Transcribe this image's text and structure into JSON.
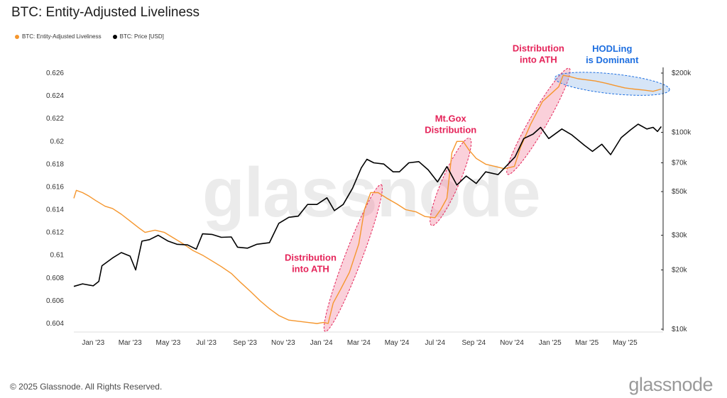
{
  "title": "BTC: Entity-Adjusted Liveliness",
  "legend": {
    "liveliness_label": "BTC: Entity-Adjusted Liveliness",
    "price_label": "BTC: Price [USD]"
  },
  "footer": {
    "copyright": "© 2025 Glassnode. All Rights Reserved.",
    "logo": "glassnode"
  },
  "watermark": "glassnode",
  "colors": {
    "liveliness": "#f5962d",
    "price": "#000000",
    "pink_annotation": "#e5245a",
    "blue_annotation": "#1e6fe0",
    "pink_fill": "rgba(240,120,150,0.35)",
    "blue_fill": "rgba(120,170,230,0.3)"
  },
  "chart_data": {
    "type": "line",
    "title": "BTC: Entity-Adjusted Liveliness",
    "x_ticks": [
      "Jan '23",
      "Mar '23",
      "May '23",
      "Jul '23",
      "Sep '23",
      "Nov '23",
      "Jan '24",
      "Mar '24",
      "May '24",
      "Jul '24",
      "Sep '24",
      "Nov '24",
      "Jan '25",
      "Mar '25",
      "May '25"
    ],
    "x_range": [
      "2022-12-01",
      "2025-07-01"
    ],
    "left_axis": {
      "ticks": [
        "0.626",
        "0.624",
        "0.622",
        "0.62",
        "0.618",
        "0.616",
        "0.614",
        "0.612",
        "0.61",
        "0.608",
        "0.606",
        "0.604"
      ],
      "range": [
        0.6035,
        0.626
      ]
    },
    "right_axis": {
      "scale": "log",
      "ticks": [
        "$200k",
        "$100k",
        "$70k",
        "$50k",
        "$30k",
        "$20k",
        "$10k"
      ],
      "tick_values": [
        200000,
        100000,
        70000,
        50000,
        30000,
        20000,
        10000
      ],
      "range": [
        10000,
        200000
      ]
    },
    "grid": false,
    "legend_position": "top-left",
    "series": [
      {
        "name": "BTC: Entity-Adjusted Liveliness",
        "axis": "left",
        "color": "#f5962d",
        "points": [
          [
            "2022-12-01",
            0.615
          ],
          [
            "2022-12-05",
            0.6157
          ],
          [
            "2022-12-15",
            0.6155
          ],
          [
            "2022-12-25",
            0.6152
          ],
          [
            "2023-01-05",
            0.6148
          ],
          [
            "2023-01-20",
            0.6143
          ],
          [
            "2023-02-01",
            0.6141
          ],
          [
            "2023-02-15",
            0.6136
          ],
          [
            "2023-03-01",
            0.613
          ],
          [
            "2023-03-15",
            0.6124
          ],
          [
            "2023-03-25",
            0.612
          ],
          [
            "2023-04-10",
            0.6122
          ],
          [
            "2023-04-25",
            0.612
          ],
          [
            "2023-05-10",
            0.6115
          ],
          [
            "2023-05-25",
            0.611
          ],
          [
            "2023-06-10",
            0.6104
          ],
          [
            "2023-06-25",
            0.61
          ],
          [
            "2023-07-10",
            0.6095
          ],
          [
            "2023-07-25",
            0.609
          ],
          [
            "2023-08-10",
            0.6084
          ],
          [
            "2023-08-25",
            0.6076
          ],
          [
            "2023-09-10",
            0.6068
          ],
          [
            "2023-09-25",
            0.606
          ],
          [
            "2023-10-10",
            0.6053
          ],
          [
            "2023-10-25",
            0.6047
          ],
          [
            "2023-11-10",
            0.6043
          ],
          [
            "2023-11-25",
            0.6042
          ],
          [
            "2023-12-10",
            0.6041
          ],
          [
            "2023-12-25",
            0.604
          ],
          [
            "2024-01-05",
            0.6041
          ],
          [
            "2024-01-12",
            0.604
          ],
          [
            "2024-01-20",
            0.6058
          ],
          [
            "2024-02-01",
            0.607
          ],
          [
            "2024-02-15",
            0.6085
          ],
          [
            "2024-03-01",
            0.611
          ],
          [
            "2024-03-10",
            0.614
          ],
          [
            "2024-03-20",
            0.6155
          ],
          [
            "2024-04-01",
            0.6155
          ],
          [
            "2024-04-15",
            0.615
          ],
          [
            "2024-05-01",
            0.6145
          ],
          [
            "2024-05-15",
            0.614
          ],
          [
            "2024-06-01",
            0.6138
          ],
          [
            "2024-06-15",
            0.6134
          ],
          [
            "2024-07-01",
            0.6133
          ],
          [
            "2024-07-10",
            0.614
          ],
          [
            "2024-07-20",
            0.615
          ],
          [
            "2024-07-28",
            0.619
          ],
          [
            "2024-08-05",
            0.62
          ],
          [
            "2024-08-15",
            0.62
          ],
          [
            "2024-08-25",
            0.6192
          ],
          [
            "2024-09-05",
            0.6185
          ],
          [
            "2024-09-20",
            0.618
          ],
          [
            "2024-10-05",
            0.6178
          ],
          [
            "2024-10-20",
            0.6176
          ],
          [
            "2024-11-05",
            0.6178
          ],
          [
            "2024-11-15",
            0.6195
          ],
          [
            "2024-12-01",
            0.6215
          ],
          [
            "2024-12-20",
            0.6235
          ],
          [
            "2025-01-05",
            0.6243
          ],
          [
            "2025-01-15",
            0.6248
          ],
          [
            "2025-01-22",
            0.6258
          ],
          [
            "2025-02-01",
            0.6257
          ],
          [
            "2025-02-15",
            0.6255
          ],
          [
            "2025-03-01",
            0.6254
          ],
          [
            "2025-03-15",
            0.6253
          ],
          [
            "2025-04-01",
            0.6251
          ],
          [
            "2025-04-15",
            0.6249
          ],
          [
            "2025-05-01",
            0.6247
          ],
          [
            "2025-05-15",
            0.6246
          ],
          [
            "2025-06-01",
            0.6245
          ],
          [
            "2025-06-15",
            0.6244
          ],
          [
            "2025-06-28",
            0.6246
          ]
        ]
      },
      {
        "name": "BTC: Price [USD]",
        "axis": "right",
        "color": "#000000",
        "points": [
          [
            "2022-12-01",
            16500
          ],
          [
            "2022-12-15",
            17000
          ],
          [
            "2023-01-01",
            16600
          ],
          [
            "2023-01-10",
            17500
          ],
          [
            "2023-01-15",
            21000
          ],
          [
            "2023-02-01",
            23000
          ],
          [
            "2023-02-15",
            24500
          ],
          [
            "2023-03-01",
            23500
          ],
          [
            "2023-03-10",
            20000
          ],
          [
            "2023-03-20",
            28000
          ],
          [
            "2023-04-01",
            28500
          ],
          [
            "2023-04-15",
            30000
          ],
          [
            "2023-05-01",
            28000
          ],
          [
            "2023-05-15",
            27000
          ],
          [
            "2023-06-01",
            26800
          ],
          [
            "2023-06-15",
            25500
          ],
          [
            "2023-06-25",
            30500
          ],
          [
            "2023-07-10",
            30300
          ],
          [
            "2023-07-25",
            29300
          ],
          [
            "2023-08-10",
            29400
          ],
          [
            "2023-08-20",
            26100
          ],
          [
            "2023-09-05",
            25800
          ],
          [
            "2023-09-20",
            27000
          ],
          [
            "2023-10-10",
            27500
          ],
          [
            "2023-10-25",
            34500
          ],
          [
            "2023-11-10",
            37000
          ],
          [
            "2023-11-25",
            37500
          ],
          [
            "2023-12-10",
            43000
          ],
          [
            "2023-12-25",
            43000
          ],
          [
            "2024-01-10",
            46500
          ],
          [
            "2024-01-22",
            40000
          ],
          [
            "2024-02-05",
            43000
          ],
          [
            "2024-02-20",
            52000
          ],
          [
            "2024-03-05",
            66000
          ],
          [
            "2024-03-14",
            73000
          ],
          [
            "2024-03-25",
            70000
          ],
          [
            "2024-04-10",
            69000
          ],
          [
            "2024-04-25",
            63000
          ],
          [
            "2024-05-05",
            63000
          ],
          [
            "2024-05-20",
            70000
          ],
          [
            "2024-06-05",
            71000
          ],
          [
            "2024-06-20",
            64500
          ],
          [
            "2024-07-05",
            56000
          ],
          [
            "2024-07-20",
            67000
          ],
          [
            "2024-08-05",
            54000
          ],
          [
            "2024-08-20",
            60000
          ],
          [
            "2024-09-05",
            55000
          ],
          [
            "2024-09-20",
            63000
          ],
          [
            "2024-10-10",
            61000
          ],
          [
            "2024-10-28",
            70000
          ],
          [
            "2024-11-06",
            75000
          ],
          [
            "2024-11-20",
            93000
          ],
          [
            "2024-12-05",
            98000
          ],
          [
            "2024-12-17",
            106000
          ],
          [
            "2024-12-30",
            93000
          ],
          [
            "2025-01-20",
            104000
          ],
          [
            "2025-02-05",
            97000
          ],
          [
            "2025-02-25",
            86000
          ],
          [
            "2025-03-10",
            80000
          ],
          [
            "2025-03-25",
            87000
          ],
          [
            "2025-04-08",
            77000
          ],
          [
            "2025-04-25",
            94000
          ],
          [
            "2025-05-10",
            103000
          ],
          [
            "2025-05-22",
            110000
          ],
          [
            "2025-06-05",
            104000
          ],
          [
            "2025-06-15",
            106000
          ],
          [
            "2025-06-22",
            101000
          ],
          [
            "2025-06-28",
            107000
          ]
        ]
      }
    ],
    "annotations": [
      {
        "text_lines": [
          "Distribution",
          "into ATH"
        ],
        "color": "pink",
        "ellipse_from": "2024-01-12",
        "ellipse_to": "2024-04-01"
      },
      {
        "text_lines": [
          "Mt.Gox",
          "Distribution"
        ],
        "color": "pink",
        "ellipse_from": "2024-07-01",
        "ellipse_to": "2024-08-20"
      },
      {
        "text_lines": [
          "Distribution",
          "into ATH"
        ],
        "color": "pink",
        "ellipse_from": "2024-11-01",
        "ellipse_to": "2025-01-25"
      },
      {
        "text_lines": [
          "HODLing",
          "is Dominant"
        ],
        "color": "blue",
        "ellipse_from": "2025-01-20",
        "ellipse_to": "2025-06-30"
      }
    ]
  }
}
